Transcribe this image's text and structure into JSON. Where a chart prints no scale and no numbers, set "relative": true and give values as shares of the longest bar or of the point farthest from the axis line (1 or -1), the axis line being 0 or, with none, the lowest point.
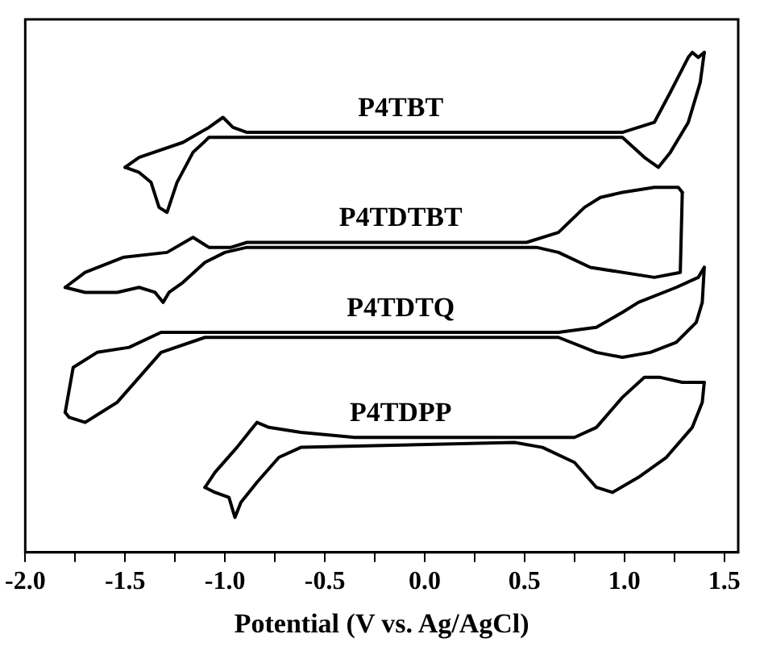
{
  "chart_data": {
    "type": "line",
    "relative": true,
    "xlabel": "Potential (V vs. Ag/AgCl)",
    "xlim": [
      -2.0,
      1.57
    ],
    "xticks": [
      {
        "value": -2.0,
        "label": "-2.0"
      },
      {
        "value": -1.75,
        "label": null
      },
      {
        "value": -1.5,
        "label": "-1.5"
      },
      {
        "value": -1.25,
        "label": null
      },
      {
        "value": -1.0,
        "label": "-1.0"
      },
      {
        "value": -0.75,
        "label": null
      },
      {
        "value": -0.5,
        "label": "-0.5"
      },
      {
        "value": -0.25,
        "label": null
      },
      {
        "value": 0.0,
        "label": "0.0"
      },
      {
        "value": 0.25,
        "label": null
      },
      {
        "value": 0.5,
        "label": "0.5"
      },
      {
        "value": 0.75,
        "label": null
      },
      {
        "value": 1.0,
        "label": "1.0"
      },
      {
        "value": 1.25,
        "label": null
      },
      {
        "value": 1.5,
        "label": "1.5"
      }
    ],
    "tick_labels": "x",
    "marker": "none",
    "line_style": "solid",
    "series": [
      {
        "name": "P4TBT",
        "color": "#000000",
        "x": [
          -1.5,
          -1.43,
          -1.21,
          -1.08,
          -1.01,
          -0.96,
          -0.89,
          0.99,
          1.15,
          1.23,
          1.32,
          1.34,
          1.37,
          1.4
        ],
        "values": [
          0.77,
          0.79,
          0.82,
          0.85,
          0.87,
          0.85,
          0.84,
          0.84,
          0.86,
          0.92,
          0.99,
          1.0,
          0.99,
          1.0
        ]
      },
      {
        "color": "#000000",
        "x": [
          -1.5,
          -1.43,
          -1.37,
          -1.33,
          -1.29,
          -1.24,
          -1.16,
          -1.08,
          -0.89,
          0.72,
          0.99,
          1.1,
          1.17,
          1.23,
          1.32,
          1.38,
          1.4
        ],
        "values": [
          0.77,
          0.76,
          0.74,
          0.69,
          0.68,
          0.74,
          0.8,
          0.83,
          0.83,
          0.83,
          0.83,
          0.79,
          0.77,
          0.8,
          0.86,
          0.94,
          1.0
        ]
      },
      {
        "name": "P4TDTBT",
        "color": "#000000",
        "x": [
          -1.8,
          -1.7,
          -1.51,
          -1.29,
          -1.16,
          -1.08,
          -0.97,
          -0.89,
          0.51,
          0.67,
          0.8,
          0.88,
          0.99,
          1.15,
          1.27,
          1.29
        ],
        "values": [
          0.53,
          0.56,
          0.59,
          0.6,
          0.63,
          0.61,
          0.61,
          0.62,
          0.62,
          0.64,
          0.69,
          0.71,
          0.72,
          0.73,
          0.73,
          0.72
        ]
      },
      {
        "color": "#000000",
        "x": [
          -1.8,
          -1.7,
          -1.62,
          -1.54,
          -1.43,
          -1.35,
          -1.31,
          -1.28,
          -1.21,
          -1.1,
          -1.0,
          -0.89,
          0.56,
          0.67,
          0.83,
          1.15,
          1.28,
          1.29
        ],
        "values": [
          0.53,
          0.52,
          0.52,
          0.52,
          0.53,
          0.52,
          0.5,
          0.52,
          0.54,
          0.58,
          0.6,
          0.61,
          0.61,
          0.6,
          0.57,
          0.55,
          0.56,
          0.72
        ]
      },
      {
        "name": "P4TDTQ",
        "color": "#000000",
        "x": [
          -1.8,
          -1.76,
          -1.64,
          -1.48,
          -1.32,
          -1.21,
          -1.1,
          -0.89,
          0.67,
          0.86,
          0.99,
          1.07,
          1.26,
          1.37,
          1.4
        ],
        "values": [
          0.28,
          0.37,
          0.4,
          0.41,
          0.44,
          0.44,
          0.44,
          0.44,
          0.44,
          0.45,
          0.48,
          0.5,
          0.53,
          0.55,
          0.57
        ]
      },
      {
        "color": "#000000",
        "x": [
          -1.8,
          -1.78,
          -1.7,
          -1.62,
          -1.54,
          -1.43,
          -1.32,
          -1.1,
          0.45,
          0.67,
          0.86,
          0.99,
          1.13,
          1.26,
          1.36,
          1.39,
          1.4
        ],
        "values": [
          0.28,
          0.27,
          0.26,
          0.28,
          0.3,
          0.35,
          0.4,
          0.43,
          0.43,
          0.43,
          0.4,
          0.39,
          0.4,
          0.42,
          0.46,
          0.5,
          0.57
        ]
      },
      {
        "name": "P4TDPP",
        "color": "#000000",
        "x": [
          -1.1,
          -1.05,
          -0.94,
          -0.88,
          -0.84,
          -0.78,
          -0.62,
          -0.35,
          0.75,
          0.86,
          0.99,
          1.1,
          1.18,
          1.29,
          1.4
        ],
        "values": [
          0.13,
          0.16,
          0.21,
          0.24,
          0.26,
          0.25,
          0.24,
          0.23,
          0.23,
          0.25,
          0.31,
          0.35,
          0.35,
          0.34,
          0.34
        ]
      },
      {
        "color": "#000000",
        "x": [
          -1.1,
          -1.05,
          -0.98,
          -0.95,
          -0.92,
          -0.84,
          -0.73,
          -0.62,
          0.45,
          0.59,
          0.75,
          0.86,
          0.94,
          1.07,
          1.21,
          1.34,
          1.39,
          1.4
        ],
        "values": [
          0.13,
          0.12,
          0.11,
          0.07,
          0.1,
          0.14,
          0.19,
          0.21,
          0.22,
          0.21,
          0.18,
          0.13,
          0.12,
          0.15,
          0.19,
          0.25,
          0.3,
          0.34
        ]
      }
    ]
  }
}
